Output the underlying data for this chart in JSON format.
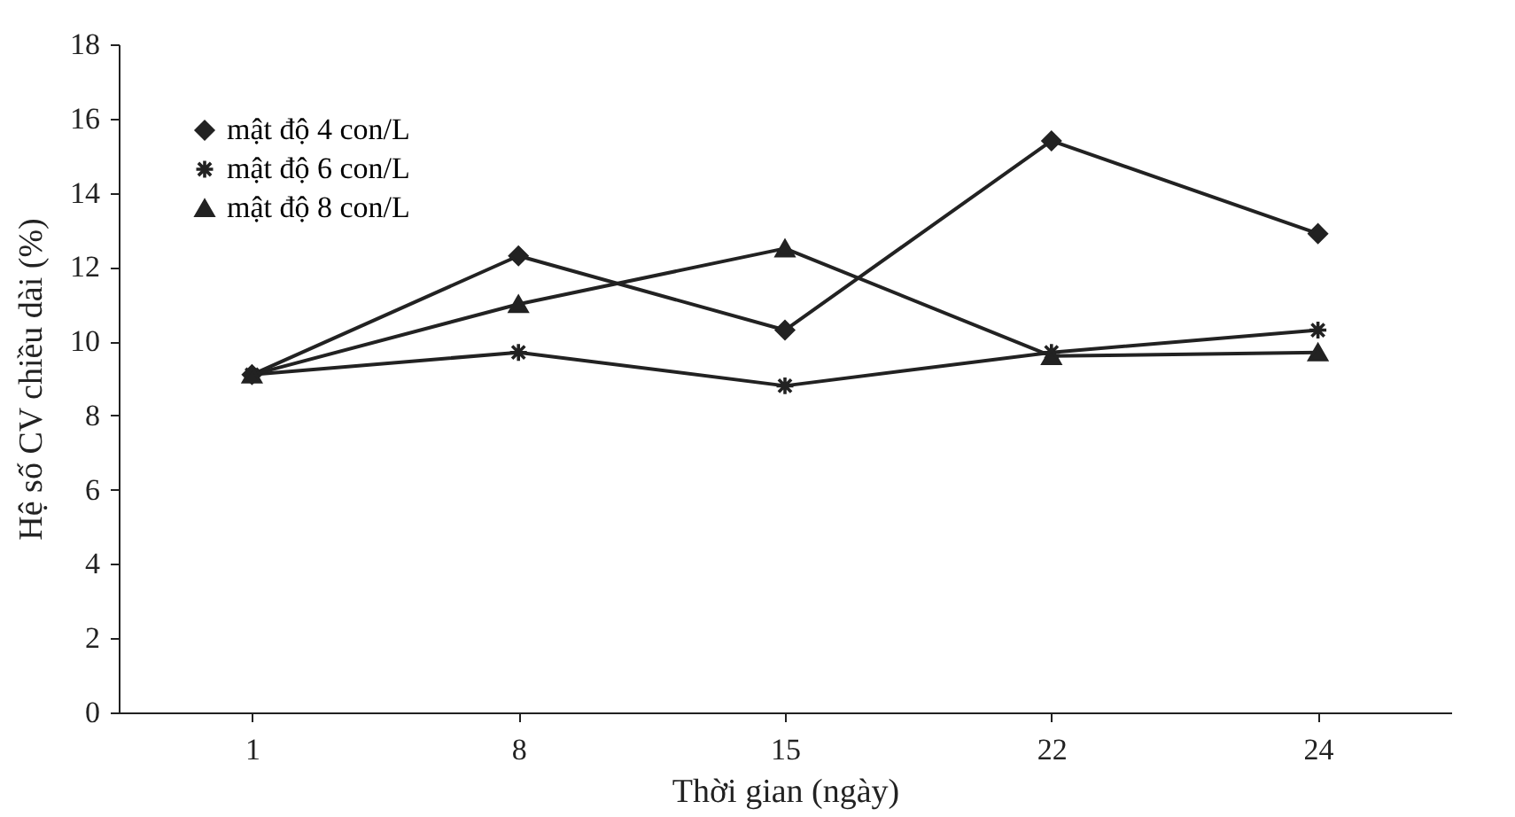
{
  "chart_data": {
    "type": "line",
    "xlabel": "Thời gian (ngày)",
    "ylabel": "Hệ số CV chiều dài (%)",
    "categories": [
      "1",
      "8",
      "15",
      "22",
      "24"
    ],
    "series": [
      {
        "name": "mật độ 4 con/L",
        "color": "#222222",
        "marker": "diamond",
        "values": [
          9.1,
          12.3,
          10.3,
          15.4,
          12.9
        ]
      },
      {
        "name": "mật độ 6 con/L",
        "color": "#222222",
        "marker": "cross",
        "values": [
          9.1,
          9.7,
          8.8,
          9.7,
          10.3
        ]
      },
      {
        "name": "mật độ 8 con/L",
        "color": "#222222",
        "marker": "triangle",
        "values": [
          9.1,
          11.0,
          12.5,
          9.6,
          9.7
        ]
      }
    ],
    "ylim": [
      0,
      18
    ],
    "yticks": [
      0,
      2,
      4,
      6,
      8,
      10,
      12,
      14,
      16,
      18
    ],
    "grid": false,
    "legend": "top left",
    "line_style": "solid"
  }
}
